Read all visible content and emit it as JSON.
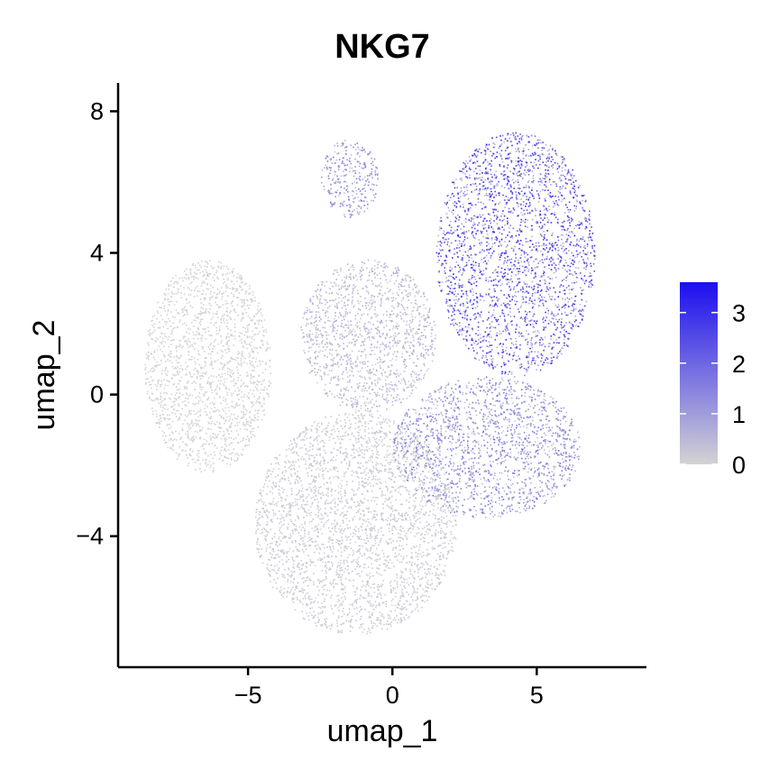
{
  "chart_data": {
    "type": "scatter",
    "title": "NKG7",
    "xlabel": "umap_1",
    "ylabel": "umap_2",
    "xlim": [
      -9.5,
      8.8
    ],
    "ylim": [
      -7.7,
      8.8
    ],
    "x_ticks": [
      -5,
      0,
      5
    ],
    "x_tick_labels": [
      "−5",
      "0",
      "5"
    ],
    "y_ticks": [
      -4,
      0,
      4,
      8
    ],
    "y_tick_labels": [
      "−4",
      "0",
      "4",
      "8"
    ],
    "grid": false,
    "color_scale": {
      "low_color": "#d3d3d3",
      "high_color": "#1c0ff0",
      "min": 0,
      "max": 3.6,
      "ticks": [
        0,
        1,
        2,
        3
      ],
      "tick_labels": [
        "0",
        "1",
        "2",
        "3"
      ],
      "legend_position": "right"
    },
    "regions": [
      {
        "name": "left-lobe",
        "x_range": [
          -8.6,
          -4.2
        ],
        "y_range": [
          -2.2,
          3.8
        ],
        "expression": 0.0
      },
      {
        "name": "bottom-lobe",
        "x_range": [
          -4.8,
          2.2
        ],
        "y_range": [
          -6.8,
          -0.5
        ],
        "expression": 0.2
      },
      {
        "name": "center",
        "x_range": [
          -3.2,
          1.5
        ],
        "y_range": [
          -0.5,
          3.8
        ],
        "expression": 0.6
      },
      {
        "name": "top-left-tip",
        "x_range": [
          -2.5,
          -0.5
        ],
        "y_range": [
          5.0,
          7.2
        ],
        "expression": 1.4
      },
      {
        "name": "right-upper",
        "x_range": [
          1.5,
          7.0
        ],
        "y_range": [
          0.5,
          7.4
        ],
        "expression": 2.6
      },
      {
        "name": "right-lower",
        "x_range": [
          0.0,
          6.5
        ],
        "y_range": [
          -3.5,
          0.5
        ],
        "expression": 1.5
      }
    ]
  }
}
